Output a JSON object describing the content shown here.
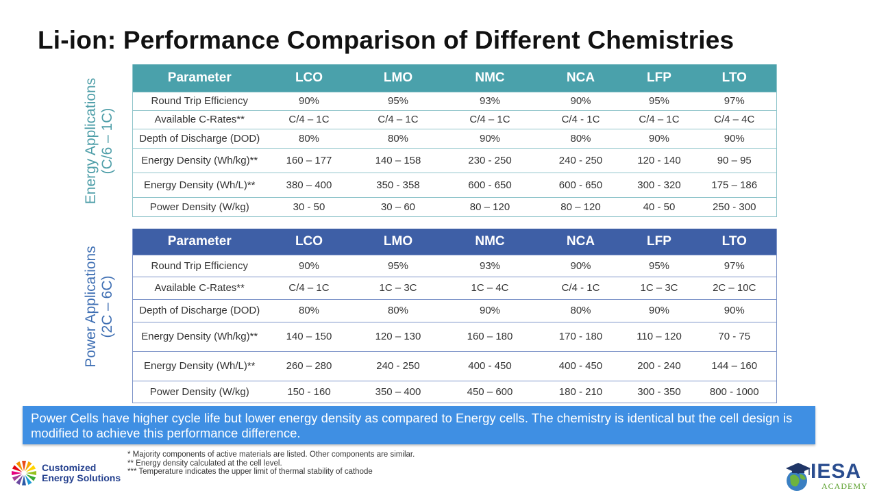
{
  "title": "Li-ion: Performance Comparison of Different Chemistries",
  "side_labels": {
    "energy": [
      "Energy Applications",
      "(C/6 – 1C)"
    ],
    "power": [
      "Power Applications",
      "(2C – 6C)"
    ]
  },
  "energy_table": {
    "headers": [
      "Parameter",
      "LCO",
      "LMO",
      "NMC",
      "NCA",
      "LFP",
      "LTO"
    ],
    "rows": [
      [
        "Round Trip Efficiency",
        "90%",
        "95%",
        "93%",
        "90%",
        "95%",
        "97%"
      ],
      [
        "Available C-Rates**",
        "C/4 – 1C",
        "C/4 – 1C",
        "C/4 – 1C",
        "C/4 - 1C",
        "C/4 – 1C",
        "C/4 – 4C"
      ],
      [
        "Depth of Discharge (DOD)",
        "80%",
        "80%",
        "90%",
        "80%",
        "90%",
        "90%"
      ],
      [
        "Energy Density (Wh/kg)**",
        "160 – 177",
        "140 – 158",
        "230 - 250",
        "240 - 250",
        "120 - 140",
        "90 – 95"
      ],
      [
        "Energy Density (Wh/L)**",
        "380 – 400",
        "350 - 358",
        "600 - 650",
        "600 - 650",
        "300 - 320",
        "175 – 186"
      ],
      [
        "Power Density (W/kg)",
        "30 - 50",
        "30 – 60",
        "80 – 120",
        "80 – 120",
        "40 - 50",
        "250 - 300"
      ]
    ]
  },
  "power_table": {
    "headers": [
      "Parameter",
      "LCO",
      "LMO",
      "NMC",
      "NCA",
      "LFP",
      "LTO"
    ],
    "rows": [
      [
        "Round Trip Efficiency",
        "90%",
        "95%",
        "93%",
        "90%",
        "95%",
        "97%"
      ],
      [
        "Available C-Rates**",
        "C/4 – 1C",
        "1C – 3C",
        "1C – 4C",
        "C/4 - 1C",
        "1C – 3C",
        "2C – 10C"
      ],
      [
        "Depth of Discharge (DOD)",
        "80%",
        "80%",
        "90%",
        "80%",
        "90%",
        "90%"
      ],
      [
        "Energy Density (Wh/kg)**",
        "140 – 150",
        "120 – 130",
        "160 – 180",
        "170 - 180",
        "110 – 120",
        "70 - 75"
      ],
      [
        "Energy Density (Wh/L)**",
        "260 – 280",
        "240 - 250",
        "400 - 450",
        "400 - 450",
        "200 - 240",
        "144 – 160"
      ],
      [
        "Power Density (W/kg)",
        "150 - 160",
        "350 – 400",
        "450 – 600",
        "180 - 210",
        "300 - 350",
        "800 - 1000"
      ]
    ]
  },
  "callout": "Power Cells have higher cycle life but lower energy density as compared to Energy cells. The chemistry is identical but the cell design is modified to achieve this performance difference.",
  "footnotes": [
    "*    Majority components of active materials are listed. Other components are similar.",
    "**   Energy density calculated at the cell level.",
    "***  Temperature indicates the upper limit of thermal stability of cathode"
  ],
  "logos": {
    "ces": [
      "Customized",
      "Energy Solutions"
    ],
    "iesa": "IESA",
    "iesa_sub": "ACADEMY"
  },
  "colors": {
    "energy_header": "#4aa1ab",
    "power_header": "#3e5fa6",
    "callout_bg": "#3f8fe3"
  }
}
